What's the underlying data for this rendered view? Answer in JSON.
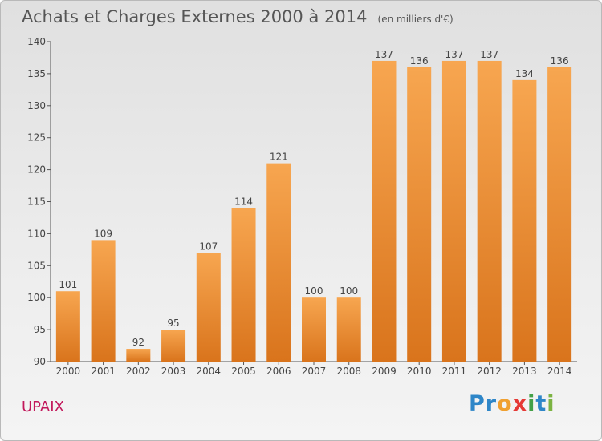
{
  "header": {
    "title": "Achats et Charges Externes 2000 à 2014",
    "unit": "(en milliers d'€)"
  },
  "footer": {
    "place": "UPAIX",
    "logo_letters": [
      {
        "ch": "P",
        "color": "#2e86c8"
      },
      {
        "ch": "r",
        "color": "#2e86c8"
      },
      {
        "ch": "o",
        "color": "#f0a030"
      },
      {
        "ch": "x",
        "color": "#e53935"
      },
      {
        "ch": "i",
        "color": "#43a047"
      },
      {
        "ch": "t",
        "color": "#2e86c8"
      },
      {
        "ch": "i",
        "color": "#7cb342"
      }
    ]
  },
  "chart_data": {
    "type": "bar",
    "title": "Achats et Charges Externes 2000 à 2014",
    "subtitle": "(en milliers d'€)",
    "categories": [
      "2000",
      "2001",
      "2002",
      "2003",
      "2004",
      "2005",
      "2006",
      "2007",
      "2008",
      "2009",
      "2010",
      "2011",
      "2012",
      "2013",
      "2014"
    ],
    "values": [
      101,
      109,
      92,
      95,
      107,
      114,
      121,
      100,
      100,
      137,
      136,
      137,
      137,
      134,
      136
    ],
    "ylim": [
      90,
      140
    ],
    "yticks": [
      90,
      95,
      100,
      105,
      110,
      115,
      120,
      125,
      130,
      135,
      140
    ],
    "grid": false,
    "bar_color": "#f08e2c",
    "xlabel": "",
    "ylabel": ""
  }
}
